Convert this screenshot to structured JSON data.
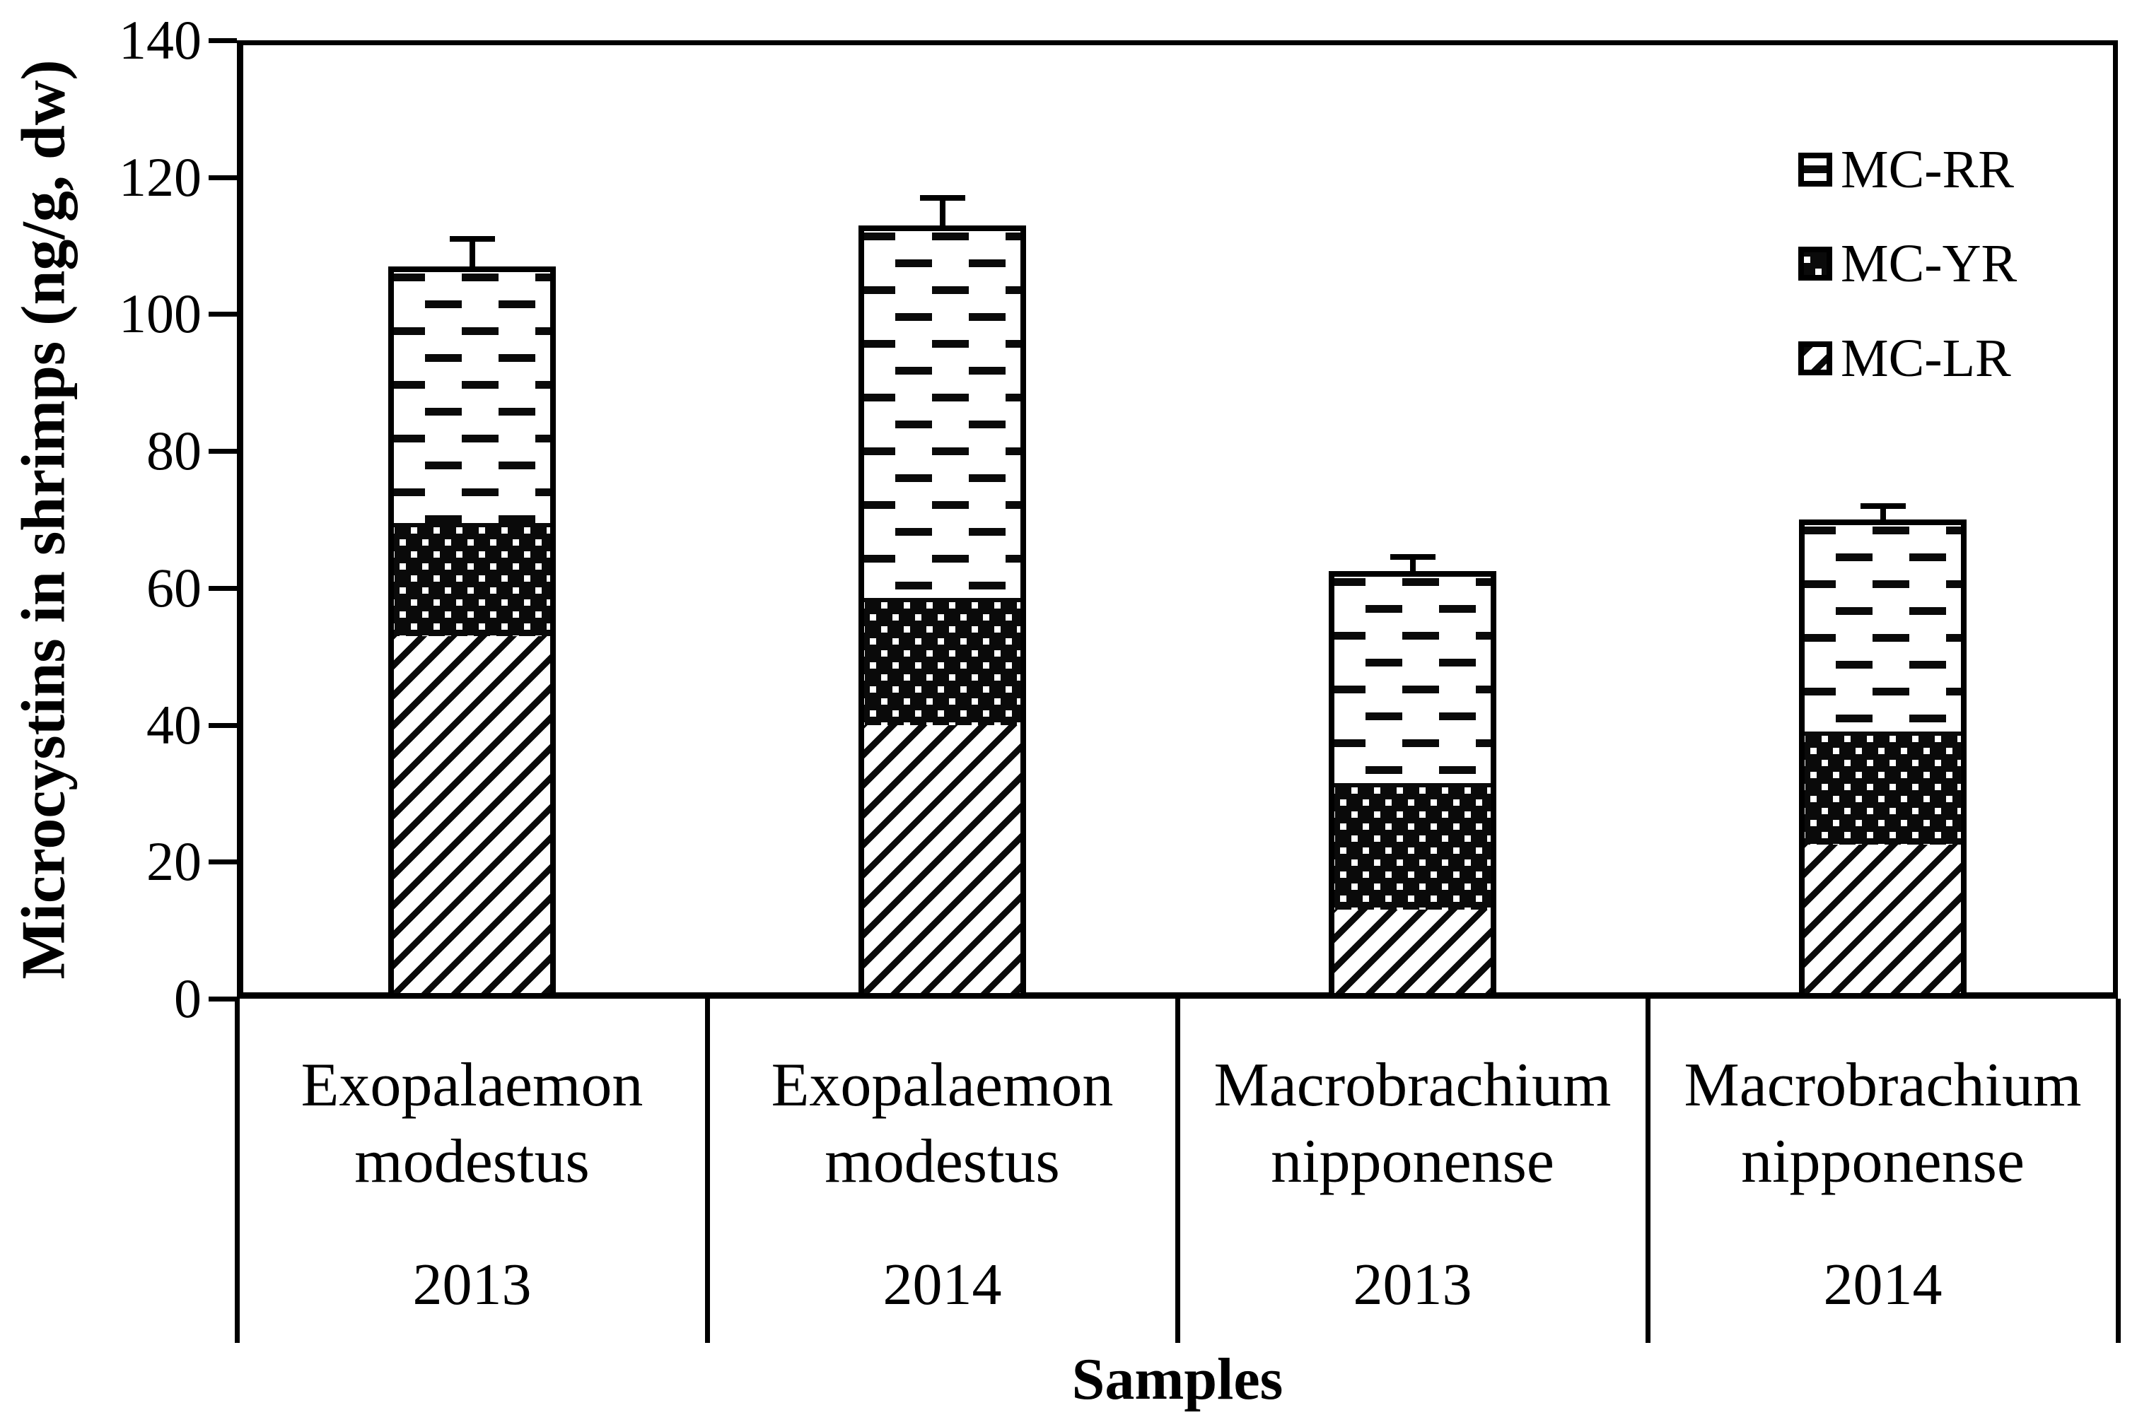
{
  "figure": {
    "background": "#ffffff",
    "ink": "#000000"
  },
  "chart_data": {
    "type": "bar",
    "stacked": true,
    "title": "",
    "xlabel": "Samples",
    "ylabel": "Microcystins in shrimps (ng/g, dw)",
    "ylim": [
      0,
      140
    ],
    "ytick_step": 20,
    "yticks": [
      0,
      20,
      40,
      60,
      80,
      100,
      120,
      140
    ],
    "grid": false,
    "legend_position": "top-right-inside",
    "categories": [
      {
        "species": "Exopalaemon modestus",
        "year": "2013"
      },
      {
        "species": "Exopalaemon modestus",
        "year": "2014"
      },
      {
        "species": "Macrobrachium nipponense",
        "year": "2013"
      },
      {
        "species": "Macrobrachium nipponense",
        "year": "2014"
      }
    ],
    "series": [
      {
        "name": "MC-RR",
        "pattern": "white-dashes",
        "values": [
          37.5,
          54.5,
          31.0,
          31.0
        ]
      },
      {
        "name": "MC-YR",
        "pattern": "black-dots",
        "values": [
          16.5,
          18.5,
          18.5,
          16.5
        ]
      },
      {
        "name": "MC-LR",
        "pattern": "diagonal-hatch",
        "values": [
          53.0,
          40.0,
          13.0,
          22.5
        ]
      }
    ],
    "stack_order_bottom_to_top": [
      "MC-LR",
      "MC-YR",
      "MC-RR"
    ],
    "totals": [
      107.0,
      113.0,
      62.5,
      70.0
    ],
    "error_bars_upper": [
      4.0,
      4.0,
      2.0,
      2.0
    ]
  }
}
